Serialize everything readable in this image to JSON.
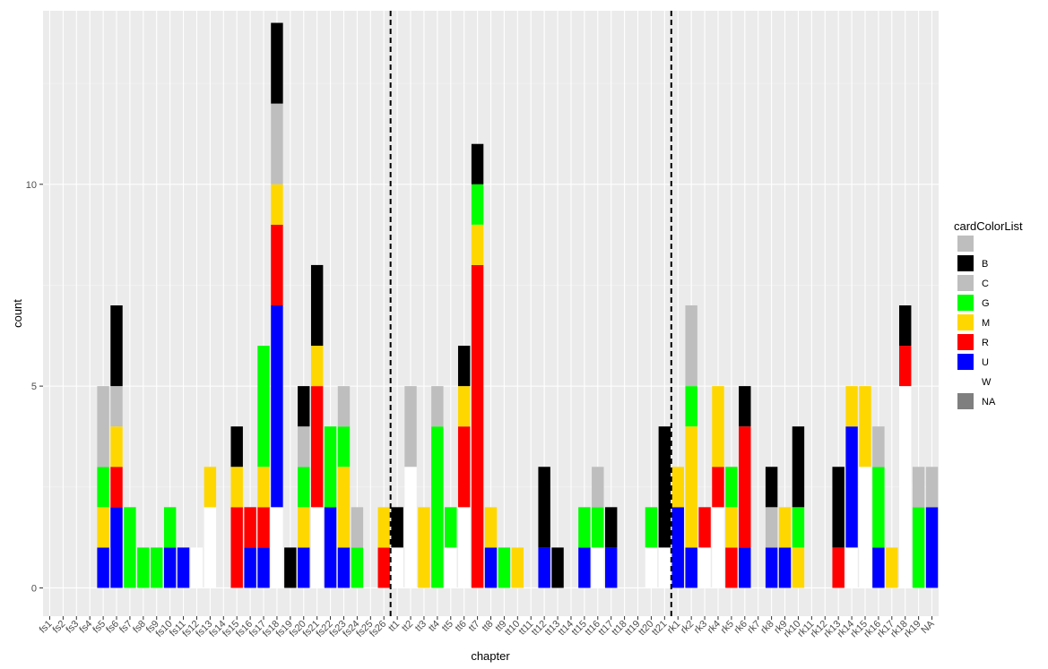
{
  "chart_data": {
    "type": "bar",
    "stacked": true,
    "xlabel": "chapter",
    "ylabel": "count",
    "ylim": [
      -0.7,
      14.3
    ],
    "yticks": [
      0,
      5,
      10
    ],
    "panel_background": "#ebebeb",
    "grid": true,
    "legend": {
      "title": "cardColorList",
      "position": "right"
    },
    "series_colors": {
      "": "#bebebe",
      "B": "#000000",
      "C": "#bebebe",
      "G": "#00ff00",
      "M": "#ffd700",
      "R": "#ff0000",
      "U": "#0000ff",
      "W": "#ffffff",
      "NA": "#7f7f7f"
    },
    "series_names": [
      "",
      "B",
      "C",
      "G",
      "M",
      "R",
      "U",
      "W",
      "NA"
    ],
    "vlines": {
      "after_categories": [
        "fs26",
        "tt21"
      ],
      "style": "dashed"
    },
    "categories": [
      {
        "label": "fs1",
        "stack": []
      },
      {
        "label": "fs2",
        "stack": []
      },
      {
        "label": "fs3",
        "stack": []
      },
      {
        "label": "fs4",
        "stack": []
      },
      {
        "label": "fs5",
        "stack": [
          [
            "U",
            1
          ],
          [
            "M",
            1
          ],
          [
            "G",
            1
          ],
          [
            "C",
            2
          ]
        ]
      },
      {
        "label": "fs6",
        "stack": [
          [
            "U",
            2
          ],
          [
            "R",
            1
          ],
          [
            "M",
            1
          ],
          [
            "C",
            1
          ],
          [
            "B",
            2
          ]
        ]
      },
      {
        "label": "fs7",
        "stack": [
          [
            "G",
            2
          ]
        ]
      },
      {
        "label": "fs8",
        "stack": [
          [
            "G",
            1
          ]
        ]
      },
      {
        "label": "fs9",
        "stack": [
          [
            "G",
            1
          ]
        ]
      },
      {
        "label": "fs10",
        "stack": [
          [
            "U",
            1
          ],
          [
            "G",
            1
          ]
        ]
      },
      {
        "label": "fs11",
        "stack": [
          [
            "U",
            1
          ]
        ]
      },
      {
        "label": "fs12",
        "stack": [
          [
            "W",
            1
          ]
        ]
      },
      {
        "label": "fs13",
        "stack": [
          [
            "W",
            2
          ],
          [
            "M",
            1
          ]
        ]
      },
      {
        "label": "fs14",
        "stack": []
      },
      {
        "label": "fs15",
        "stack": [
          [
            "R",
            2
          ],
          [
            "M",
            1
          ],
          [
            "B",
            1
          ]
        ]
      },
      {
        "label": "fs16",
        "stack": [
          [
            "U",
            1
          ],
          [
            "R",
            1
          ]
        ]
      },
      {
        "label": "fs17",
        "stack": [
          [
            "U",
            1
          ],
          [
            "R",
            1
          ],
          [
            "M",
            1
          ],
          [
            "G",
            3
          ]
        ]
      },
      {
        "label": "fs18",
        "stack": [
          [
            "W",
            2
          ],
          [
            "U",
            5
          ],
          [
            "R",
            2
          ],
          [
            "M",
            1
          ],
          [
            "C",
            2
          ],
          [
            "B",
            2
          ]
        ]
      },
      {
        "label": "fs19",
        "stack": [
          [
            "B",
            1
          ]
        ]
      },
      {
        "label": "fs20",
        "stack": [
          [
            "U",
            1
          ],
          [
            "M",
            1
          ],
          [
            "G",
            1
          ],
          [
            "C",
            1
          ],
          [
            "B",
            1
          ]
        ]
      },
      {
        "label": "fs21",
        "stack": [
          [
            "W",
            2
          ],
          [
            "R",
            3
          ],
          [
            "M",
            1
          ],
          [
            "B",
            2
          ]
        ]
      },
      {
        "label": "fs22",
        "stack": [
          [
            "U",
            2
          ],
          [
            "G",
            2
          ]
        ]
      },
      {
        "label": "fs23",
        "stack": [
          [
            "U",
            1
          ],
          [
            "M",
            2
          ],
          [
            "G",
            1
          ],
          [
            "C",
            1
          ]
        ]
      },
      {
        "label": "fs24",
        "stack": [
          [
            "G",
            1
          ],
          [
            "C",
            1
          ]
        ]
      },
      {
        "label": "fs25",
        "stack": []
      },
      {
        "label": "fs26",
        "stack": [
          [
            "R",
            1
          ],
          [
            "M",
            1
          ]
        ]
      },
      {
        "label": "tt1",
        "stack": [
          [
            "W",
            1
          ],
          [
            "B",
            1
          ]
        ]
      },
      {
        "label": "tt2",
        "stack": [
          [
            "W",
            3
          ],
          [
            "C",
            2
          ]
        ]
      },
      {
        "label": "tt3",
        "stack": [
          [
            "M",
            2
          ]
        ]
      },
      {
        "label": "tt4",
        "stack": [
          [
            "G",
            4
          ],
          [
            "C",
            1
          ]
        ]
      },
      {
        "label": "tt5",
        "stack": [
          [
            "W",
            1
          ],
          [
            "G",
            1
          ]
        ]
      },
      {
        "label": "tt6",
        "stack": [
          [
            "W",
            2
          ],
          [
            "R",
            2
          ],
          [
            "M",
            1
          ],
          [
            "B",
            1
          ]
        ]
      },
      {
        "label": "tt7",
        "stack": [
          [
            "R",
            8
          ],
          [
            "M",
            1
          ],
          [
            "G",
            1
          ],
          [
            "B",
            1
          ]
        ]
      },
      {
        "label": "tt8",
        "stack": [
          [
            "U",
            1
          ],
          [
            "M",
            1
          ]
        ]
      },
      {
        "label": "tt9",
        "stack": [
          [
            "G",
            1
          ]
        ]
      },
      {
        "label": "tt10",
        "stack": [
          [
            "M",
            1
          ]
        ]
      },
      {
        "label": "tt11",
        "stack": []
      },
      {
        "label": "tt12",
        "stack": [
          [
            "U",
            1
          ],
          [
            "B",
            2
          ]
        ]
      },
      {
        "label": "tt13",
        "stack": [
          [
            "B",
            1
          ]
        ]
      },
      {
        "label": "tt14",
        "stack": []
      },
      {
        "label": "tt15",
        "stack": [
          [
            "U",
            1
          ],
          [
            "G",
            1
          ]
        ]
      },
      {
        "label": "tt16",
        "stack": [
          [
            "W",
            1
          ],
          [
            "G",
            1
          ],
          [
            "C",
            1
          ]
        ]
      },
      {
        "label": "tt17",
        "stack": [
          [
            "U",
            1
          ],
          [
            "B",
            1
          ]
        ]
      },
      {
        "label": "tt18",
        "stack": []
      },
      {
        "label": "tt19",
        "stack": []
      },
      {
        "label": "tt20",
        "stack": [
          [
            "W",
            1
          ],
          [
            "G",
            1
          ]
        ]
      },
      {
        "label": "tt21",
        "stack": [
          [
            "W",
            1
          ],
          [
            "B",
            3
          ]
        ]
      },
      {
        "label": "rk1",
        "stack": [
          [
            "U",
            2
          ],
          [
            "M",
            1
          ]
        ]
      },
      {
        "label": "rk2",
        "stack": [
          [
            "U",
            1
          ],
          [
            "M",
            3
          ],
          [
            "G",
            1
          ],
          [
            "C",
            2
          ]
        ]
      },
      {
        "label": "rk3",
        "stack": [
          [
            "W",
            1
          ],
          [
            "R",
            1
          ]
        ]
      },
      {
        "label": "rk4",
        "stack": [
          [
            "W",
            2
          ],
          [
            "R",
            1
          ],
          [
            "M",
            2
          ]
        ]
      },
      {
        "label": "rk5",
        "stack": [
          [
            "R",
            1
          ],
          [
            "M",
            1
          ],
          [
            "G",
            1
          ]
        ]
      },
      {
        "label": "rk6",
        "stack": [
          [
            "U",
            1
          ],
          [
            "R",
            3
          ],
          [
            "B",
            1
          ]
        ]
      },
      {
        "label": "rk7",
        "stack": []
      },
      {
        "label": "rk8",
        "stack": [
          [
            "U",
            1
          ],
          [
            "C",
            1
          ],
          [
            "B",
            1
          ]
        ]
      },
      {
        "label": "rk9",
        "stack": [
          [
            "U",
            1
          ],
          [
            "M",
            1
          ]
        ]
      },
      {
        "label": "rk10",
        "stack": [
          [
            "M",
            1
          ],
          [
            "G",
            1
          ],
          [
            "B",
            2
          ]
        ]
      },
      {
        "label": "rk11",
        "stack": []
      },
      {
        "label": "rk12",
        "stack": []
      },
      {
        "label": "rk13",
        "stack": [
          [
            "R",
            1
          ],
          [
            "B",
            2
          ]
        ]
      },
      {
        "label": "rk14",
        "stack": [
          [
            "W",
            1
          ],
          [
            "U",
            3
          ],
          [
            "M",
            1
          ]
        ]
      },
      {
        "label": "rk15",
        "stack": [
          [
            "W",
            3
          ],
          [
            "M",
            2
          ]
        ]
      },
      {
        "label": "rk16",
        "stack": [
          [
            "U",
            1
          ],
          [
            "G",
            2
          ],
          [
            "C",
            1
          ]
        ]
      },
      {
        "label": "rk17",
        "stack": [
          [
            "M",
            1
          ]
        ]
      },
      {
        "label": "rk18",
        "stack": [
          [
            "W",
            5
          ],
          [
            "R",
            1
          ],
          [
            "B",
            1
          ]
        ]
      },
      {
        "label": "rk19",
        "stack": [
          [
            "G",
            2
          ],
          [
            "C",
            1
          ]
        ]
      },
      {
        "label": "NA",
        "stack": [
          [
            "U",
            2
          ],
          [
            "C",
            1
          ]
        ]
      }
    ]
  }
}
